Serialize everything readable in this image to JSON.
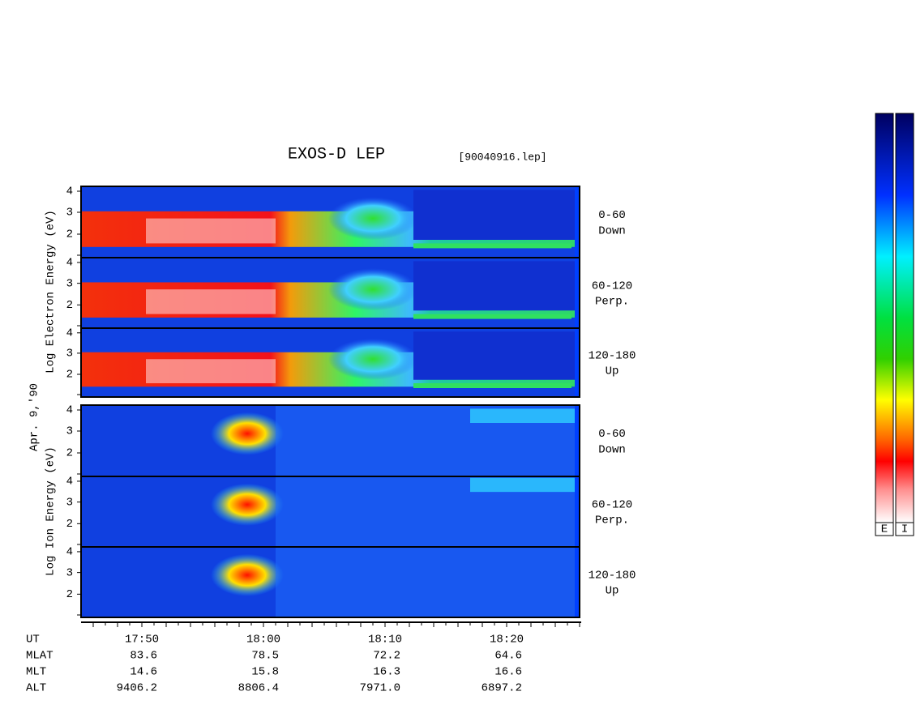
{
  "header": {
    "title": "EXOS-D LEP",
    "file": "[90040916.lep]"
  },
  "date": "Apr. 9,'90",
  "electron": {
    "axis_label": "Log  Electron  Energy (eV)",
    "panels": [
      {
        "ticks": [
          "4",
          "3",
          "2"
        ],
        "pitch": "0-60",
        "direction": "Down"
      },
      {
        "ticks": [
          "4",
          "3",
          "2"
        ],
        "pitch": "60-120",
        "direction": "Perp."
      },
      {
        "ticks": [
          "4",
          "3",
          "2"
        ],
        "pitch": "120-180",
        "direction": "Up"
      }
    ]
  },
  "ion": {
    "axis_label": "Log  Ion  Energy (eV)",
    "panels": [
      {
        "ticks": [
          "4",
          "3",
          "2"
        ],
        "pitch": "0-60",
        "direction": "Down"
      },
      {
        "ticks": [
          "4",
          "3",
          "2"
        ],
        "pitch": "60-120",
        "direction": "Perp."
      },
      {
        "ticks": [
          "4",
          "3",
          "2"
        ],
        "pitch": "120-180",
        "direction": "Up"
      }
    ]
  },
  "time_axis": {
    "rows": [
      {
        "label": "UT",
        "values": [
          "17:50",
          "18:00",
          "18:10",
          "18:20"
        ]
      },
      {
        "label": "MLAT",
        "values": [
          "83.6",
          "78.5",
          "72.2",
          "64.6"
        ]
      },
      {
        "label": "MLT",
        "values": [
          "14.6",
          "15.8",
          "16.3",
          "16.6"
        ]
      },
      {
        "label": "ALT",
        "values": [
          "9406.2",
          "8806.4",
          "7971.0",
          "6897.2"
        ]
      }
    ]
  },
  "colorbars": {
    "labels": [
      "E",
      "I"
    ]
  }
}
